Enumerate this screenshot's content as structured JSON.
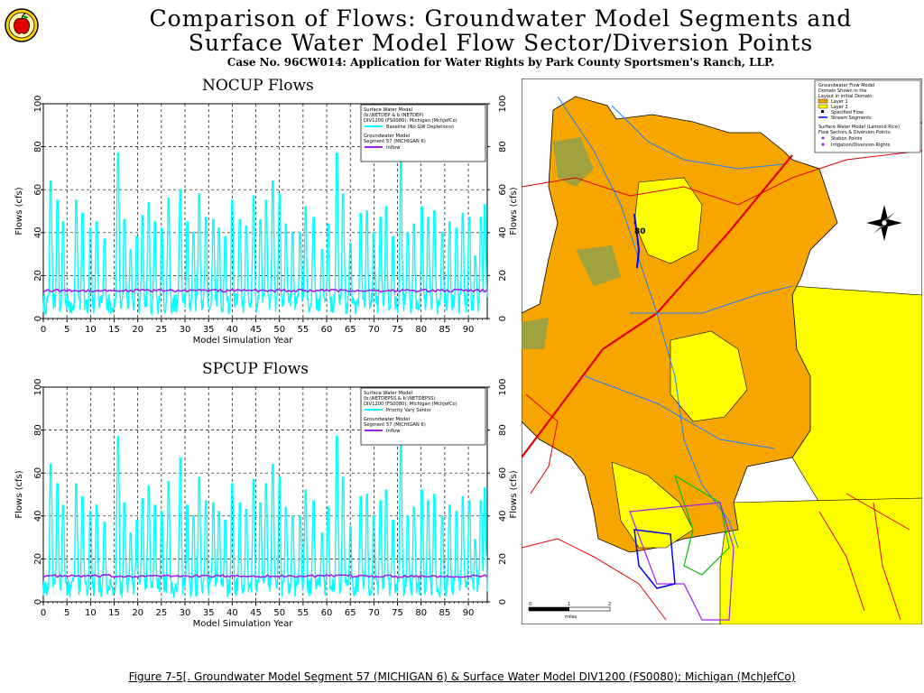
{
  "header": {
    "title_line1": "Comparison of Flows: Groundwater Model Segments and",
    "title_line2": "Surface Water Model Flow Sector/Diversion Points",
    "subtitle": "Case No. 96CW014: Application for Water Rights by Park County Sportsmen's Ranch, LLP.",
    "logo_icon": "apple-logo-icon"
  },
  "colors": {
    "surface_flow": "#00ffff",
    "gw_inflow": "#a020f0",
    "grid": "#000000",
    "map_orange": "#f7a600",
    "map_yellow": "#ffff00",
    "map_river": "#e00000",
    "map_stream": "#2080ff"
  },
  "chart_data": [
    {
      "type": "line",
      "title": "NOCUP Flows",
      "xlabel": "Model Simulation Year",
      "ylabel": "Flows (cfs)",
      "ylabel_right": "Flows (cfs)",
      "xlim": [
        0,
        94
      ],
      "ylim": [
        0,
        100
      ],
      "xticks": [
        "0",
        "5",
        "10",
        "15",
        "20",
        "25",
        "30",
        "35",
        "40",
        "45",
        "50",
        "55",
        "60",
        "65",
        "70",
        "75",
        "80",
        "85",
        "90"
      ],
      "yticks": [
        "0",
        "20",
        "40",
        "60",
        "80",
        "100"
      ],
      "grid": true,
      "legend_position": "top-right",
      "legend": {
        "header1": "Surface Water Model",
        "header2": "(b:\\NETDEP & b:\\NETDEP)",
        "header3": "DIV1200 (FS0080): Michigan (MchJefCo)",
        "header4": "Groundwater Model",
        "header5": "Segment 57 (MICHIGAN 6)"
      },
      "series": [
        {
          "name": "Baseline (No GW Depletions)",
          "color": "#00ffff",
          "peaks": [
            [
              1.6,
              64
            ],
            [
              3,
              55
            ],
            [
              4.2,
              45
            ],
            [
              7,
              55
            ],
            [
              8.3,
              49
            ],
            [
              10,
              42
            ],
            [
              11.3,
              45
            ],
            [
              13,
              37
            ],
            [
              15.8,
              77
            ],
            [
              17.2,
              46
            ],
            [
              18.5,
              32
            ],
            [
              19.8,
              38
            ],
            [
              21,
              48
            ],
            [
              22.3,
              54
            ],
            [
              23.6,
              45
            ],
            [
              25.1,
              42
            ],
            [
              26.5,
              56
            ],
            [
              29,
              60
            ],
            [
              30.5,
              45
            ],
            [
              31.8,
              40
            ],
            [
              33,
              58
            ],
            [
              34.4,
              47
            ],
            [
              36,
              46
            ],
            [
              37.2,
              42
            ],
            [
              38.5,
              38
            ],
            [
              40,
              55
            ],
            [
              41.6,
              46
            ],
            [
              43,
              43
            ],
            [
              44.5,
              57
            ],
            [
              46,
              46
            ],
            [
              47.2,
              55
            ],
            [
              48.6,
              64
            ],
            [
              50,
              58
            ],
            [
              51.4,
              44
            ],
            [
              52.8,
              40
            ],
            [
              54.4,
              40
            ],
            [
              55.5,
              52
            ],
            [
              57.2,
              47
            ],
            [
              59,
              32
            ],
            [
              60.3,
              44
            ],
            [
              62.2,
              77
            ],
            [
              63.5,
              58
            ],
            [
              65,
              35
            ],
            [
              67.2,
              49
            ],
            [
              68.5,
              50
            ],
            [
              70,
              40
            ],
            [
              71.4,
              47
            ],
            [
              72.6,
              52
            ],
            [
              74,
              38
            ],
            [
              75.7,
              73
            ],
            [
              77.2,
              40
            ],
            [
              78.5,
              44
            ],
            [
              80.2,
              52
            ],
            [
              81.5,
              47
            ],
            [
              82.8,
              50
            ],
            [
              84.5,
              40
            ],
            [
              86,
              45
            ],
            [
              87.5,
              42
            ],
            [
              88.8,
              49
            ],
            [
              90.2,
              47
            ],
            [
              91.5,
              29
            ],
            [
              92.7,
              47
            ],
            [
              93.5,
              53
            ]
          ]
        },
        {
          "name": "Inflow",
          "color": "#a020f0",
          "value": 13
        }
      ]
    },
    {
      "type": "line",
      "title": "SPCUP Flows",
      "xlabel": "Model Simulation Year",
      "ylabel": "Flows (cfs)",
      "ylabel_right": "Flows (cfs)",
      "xlim": [
        0,
        94
      ],
      "ylim": [
        0,
        100
      ],
      "xticks": [
        "0",
        "5",
        "10",
        "15",
        "20",
        "25",
        "30",
        "35",
        "40",
        "45",
        "50",
        "55",
        "60",
        "65",
        "70",
        "75",
        "80",
        "85",
        "90"
      ],
      "yticks": [
        "0",
        "20",
        "40",
        "60",
        "80",
        "100"
      ],
      "grid": true,
      "legend_position": "top-right",
      "legend": {
        "header1": "Surface Water Model",
        "header2": "(b:\\NETDEPSS & b:\\NETDEPSS)",
        "header3": "DIV1200 (FS0080): Michigan (MchJefCo)",
        "header4": "Groundwater Model",
        "header5": "Segment 57 (MICHIGAN 6)"
      },
      "series": [
        {
          "name": "Priority Vary Senior",
          "color": "#00ffff",
          "peaks": [
            [
              1.6,
              64
            ],
            [
              3,
              55
            ],
            [
              4.2,
              45
            ],
            [
              7,
              55
            ],
            [
              8.3,
              49
            ],
            [
              10,
              42
            ],
            [
              11.3,
              45
            ],
            [
              13,
              37
            ],
            [
              15.8,
              77
            ],
            [
              17.2,
              46
            ],
            [
              18.5,
              32
            ],
            [
              19.8,
              38
            ],
            [
              21,
              48
            ],
            [
              22.3,
              54
            ],
            [
              23.6,
              45
            ],
            [
              25.1,
              42
            ],
            [
              26.5,
              56
            ],
            [
              29,
              67
            ],
            [
              30.5,
              45
            ],
            [
              31.8,
              40
            ],
            [
              33,
              58
            ],
            [
              34.4,
              47
            ],
            [
              36,
              46
            ],
            [
              37.2,
              42
            ],
            [
              38.5,
              38
            ],
            [
              40,
              55
            ],
            [
              41.6,
              46
            ],
            [
              43,
              43
            ],
            [
              44.5,
              57
            ],
            [
              46,
              46
            ],
            [
              47.2,
              55
            ],
            [
              48.6,
              64
            ],
            [
              50,
              58
            ],
            [
              51.4,
              44
            ],
            [
              52.8,
              40
            ],
            [
              54.4,
              40
            ],
            [
              55.5,
              52
            ],
            [
              57.2,
              47
            ],
            [
              59,
              32
            ],
            [
              60.3,
              44
            ],
            [
              62.2,
              77
            ],
            [
              63.5,
              58
            ],
            [
              65,
              35
            ],
            [
              67.2,
              49
            ],
            [
              68.5,
              50
            ],
            [
              70,
              40
            ],
            [
              71.4,
              47
            ],
            [
              72.6,
              52
            ],
            [
              74,
              38
            ],
            [
              75.7,
              73
            ],
            [
              77.2,
              40
            ],
            [
              78.5,
              44
            ],
            [
              80.2,
              52
            ],
            [
              81.5,
              47
            ],
            [
              82.8,
              50
            ],
            [
              84.5,
              40
            ],
            [
              86,
              45
            ],
            [
              87.5,
              42
            ],
            [
              88.8,
              49
            ],
            [
              90.2,
              47
            ],
            [
              91.5,
              29
            ],
            [
              92.7,
              47
            ],
            [
              93.5,
              53
            ]
          ]
        },
        {
          "name": "Inflow",
          "color": "#a020f0",
          "value": 12
        }
      ]
    }
  ],
  "map": {
    "legend_line1": "Groundwater Flow Model",
    "legend_line2": "Domain Shown in the",
    "legend_line3": "Layout in initial Domain:",
    "legend_items": [
      "Layer 1",
      "Layer 2",
      "Specified Flow",
      "Stream Segments"
    ],
    "legend_line4": "Surface Water Model (Lamond Rice)",
    "legend_line5": "Flow Sectors & Diversion Points:",
    "legend_items2": [
      "Station Points",
      "Irrigation/Diversion Rights"
    ],
    "segment_label": "80",
    "scale_label": "miles",
    "scale_ticks": [
      "0",
      "1",
      "2"
    ],
    "compass_icon": "compass-rose-icon"
  },
  "footer": {
    "caption": "Figure 7-5[. Groundwater Model Segment 57 (MICHIGAN 6) & Surface Water Model DIV1200 (FS0080); Michigan (MchJefCo)"
  }
}
